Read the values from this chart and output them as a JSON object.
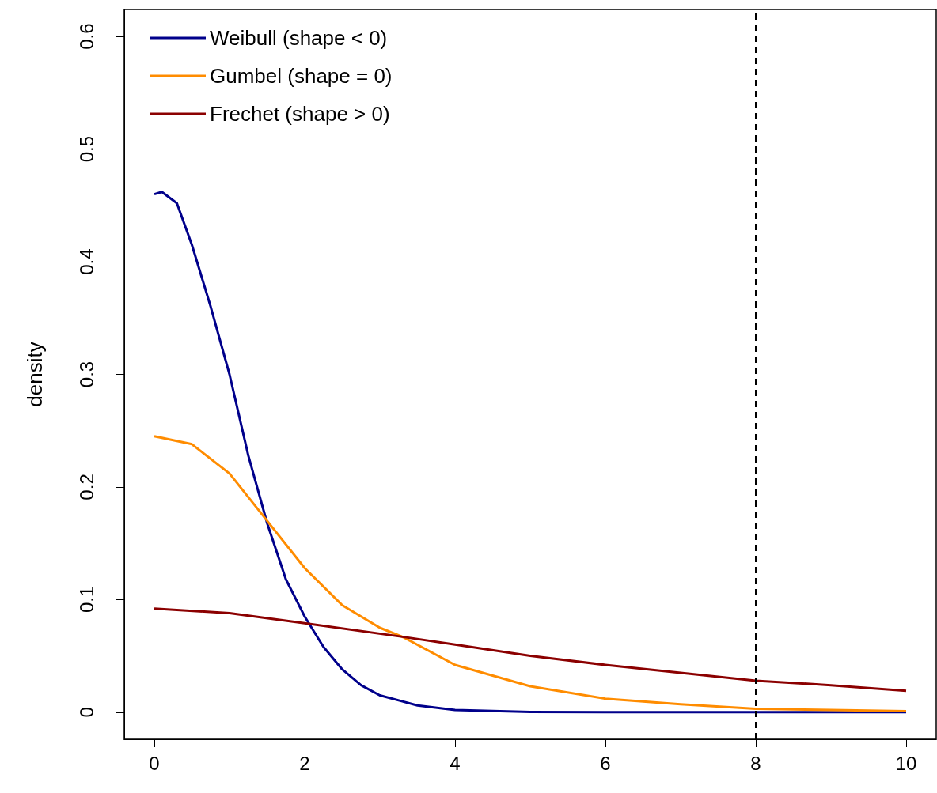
{
  "chart_data": {
    "type": "line",
    "ylabel": "density",
    "xlim": [
      -0.4,
      10.4
    ],
    "xticks": [
      0,
      2,
      4,
      6,
      8,
      10
    ],
    "ylim": [
      -0.024,
      0.624
    ],
    "yticks": [
      0,
      0.1,
      0.2,
      0.3,
      0.4,
      0.5,
      0.6
    ],
    "grid": false,
    "legend": "top left",
    "marker": "none",
    "line_style": "solid",
    "ref_lines": [
      {
        "axis": "x",
        "value": 8,
        "label": null,
        "color": "#000000",
        "line_style": "dashed"
      }
    ],
    "series": [
      {
        "name": "Weibull (shape < 0)",
        "color": "#00008b",
        "x": [
          0,
          0.1,
          0.3,
          0.5,
          0.75,
          1.0,
          1.25,
          1.5,
          1.75,
          2.0,
          2.25,
          2.5,
          2.75,
          3.0,
          3.5,
          4.0,
          5.0,
          6.0,
          8.0,
          10.0
        ],
        "values": [
          0.46,
          0.462,
          0.452,
          0.415,
          0.36,
          0.3,
          0.228,
          0.168,
          0.118,
          0.085,
          0.058,
          0.038,
          0.024,
          0.015,
          0.006,
          0.002,
          0.0003,
          0,
          0,
          0
        ]
      },
      {
        "name": "Gumbel (shape = 0)",
        "color": "#ff8c00",
        "x": [
          0,
          0.5,
          1.0,
          1.5,
          2.0,
          2.5,
          3.0,
          3.3,
          4.0,
          5.0,
          6.0,
          7.0,
          8.0,
          9.0,
          10.0
        ],
        "values": [
          0.245,
          0.238,
          0.212,
          0.17,
          0.128,
          0.095,
          0.075,
          0.067,
          0.042,
          0.023,
          0.012,
          0.007,
          0.003,
          0.002,
          0.001
        ]
      },
      {
        "name": "Frechet (shape > 0)",
        "color": "#8b0000",
        "x": [
          0,
          1,
          2,
          3.3,
          4,
          5,
          6,
          7,
          8,
          9,
          10
        ],
        "values": [
          0.092,
          0.088,
          0.079,
          0.067,
          0.06,
          0.05,
          0.042,
          0.035,
          0.028,
          0.024,
          0.019
        ]
      }
    ]
  }
}
